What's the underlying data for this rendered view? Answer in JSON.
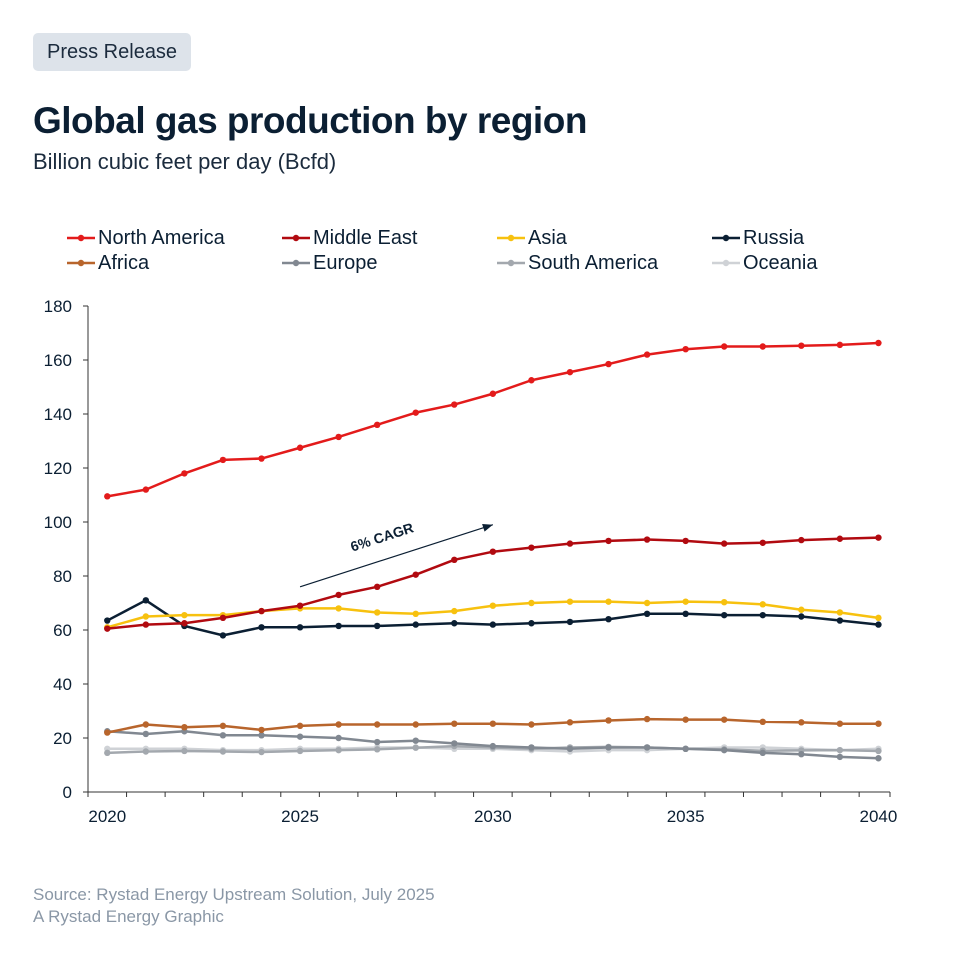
{
  "badge": "Press Release",
  "title": "Global gas production by region",
  "subtitle": "Billion cubic feet per day (Bcfd)",
  "source_line1": "Source: Rystad Energy Upstream Solution, July 2025",
  "source_line2": "A Rystad Energy Graphic",
  "chart_data": {
    "type": "line",
    "title": "Global gas production by region",
    "ylabel": "Billion cubic feet per day (Bcfd)",
    "xlabel": "",
    "xlim": [
      2020,
      2040
    ],
    "ylim": [
      0,
      180
    ],
    "y_ticks": [
      0,
      20,
      40,
      60,
      80,
      100,
      120,
      140,
      160,
      180
    ],
    "x_tick_labels": [
      "2020",
      "2025",
      "2030",
      "2035",
      "2040"
    ],
    "x": [
      2020,
      2021,
      2022,
      2023,
      2024,
      2025,
      2026,
      2027,
      2028,
      2029,
      2030,
      2031,
      2032,
      2033,
      2034,
      2035,
      2036,
      2037,
      2038,
      2039,
      2040
    ],
    "legend_position": "top",
    "annotation": {
      "text": "6% CAGR",
      "x_start": 2025,
      "y_start": 76,
      "x_end": 2030,
      "y_end": 99
    },
    "series": [
      {
        "name": "North America",
        "color": "#e31b1b",
        "values": [
          109.5,
          112,
          118,
          123,
          123.5,
          127.5,
          131.5,
          136,
          140.5,
          143.5,
          147.5,
          152.5,
          155.5,
          158.5,
          162,
          164,
          165,
          165,
          165.3,
          165.6,
          166.3
        ]
      },
      {
        "name": "Middle East",
        "color": "#b10a10",
        "values": [
          60.5,
          62,
          62.5,
          64.5,
          67,
          69,
          73,
          76,
          80.5,
          86,
          89,
          90.5,
          92,
          93,
          93.5,
          93,
          92,
          92.3,
          93.3,
          93.8,
          94.2
        ]
      },
      {
        "name": "Asia",
        "color": "#f7c10f",
        "values": [
          61,
          65,
          65.5,
          65.5,
          67,
          68,
          68,
          66.5,
          66,
          67,
          69,
          70,
          70.5,
          70.5,
          70,
          70.5,
          70.3,
          69.5,
          67.5,
          66.5,
          64.5
        ]
      },
      {
        "name": "Russia",
        "color": "#0b1f33",
        "values": [
          63.5,
          71,
          61.5,
          58,
          61,
          61,
          61.5,
          61.5,
          62,
          62.5,
          62,
          62.5,
          63,
          64,
          66,
          66,
          65.5,
          65.5,
          65,
          63.5,
          62
        ]
      },
      {
        "name": "Africa",
        "color": "#b8652c",
        "values": [
          22,
          25,
          24,
          24.5,
          23,
          24.5,
          25,
          25,
          25,
          25.3,
          25.3,
          25,
          25.8,
          26.5,
          27,
          26.8,
          26.8,
          26,
          25.8,
          25.3,
          25.3
        ]
      },
      {
        "name": "Europe",
        "color": "#818891",
        "values": [
          22.5,
          21.5,
          22.5,
          21,
          21,
          20.5,
          20,
          18.5,
          19,
          18,
          17,
          16.5,
          16,
          16.5,
          16.5,
          16,
          15.5,
          14.5,
          14,
          13,
          12.5
        ]
      },
      {
        "name": "South America",
        "color": "#a3a8ae",
        "values": [
          14.5,
          15,
          15.2,
          15,
          14.8,
          15.2,
          15.5,
          15.8,
          16.4,
          17,
          16.5,
          16,
          16.5,
          16.7,
          16.5,
          16,
          15.8,
          15.3,
          15.4,
          15.5,
          15.2
        ]
      },
      {
        "name": "Oceania",
        "color": "#cfd2d6",
        "values": [
          16,
          16,
          16,
          15.5,
          15.5,
          16,
          16,
          16.5,
          16.5,
          16,
          16,
          15.5,
          15,
          15.5,
          15.5,
          16,
          16.5,
          16.5,
          16,
          15.5,
          16
        ]
      }
    ]
  }
}
